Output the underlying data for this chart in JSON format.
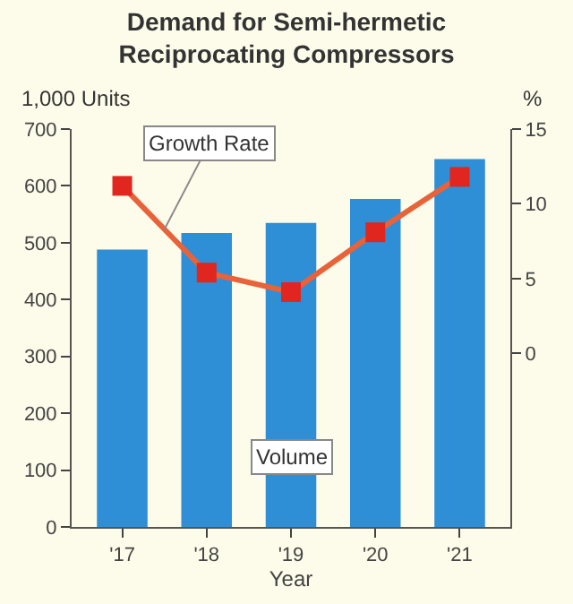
{
  "chart_data": {
    "type": "bar",
    "title": "Demand for Semi-hermetic\nReciprocating Compressors",
    "xlabel": "Year",
    "ylabel": "1,000 Units",
    "y2label": "%",
    "categories": [
      "'17",
      "'18",
      "'19",
      "'20",
      "'21"
    ],
    "series": [
      {
        "name": "Volume",
        "color": "#2e8fd6",
        "values": [
          488,
          517,
          535,
          577,
          647
        ]
      },
      {
        "name": "Growth Rate",
        "type": "line",
        "axis": "y2",
        "color": "#e8623a",
        "marker": "square",
        "values": [
          11.2,
          5.4,
          4.1,
          8.1,
          11.8
        ]
      }
    ],
    "ylim": [
      0,
      700
    ],
    "yticks": [
      0,
      100,
      200,
      300,
      400,
      500,
      600,
      700
    ],
    "y2lim": [
      -11.6,
      15
    ],
    "y2ticks": [
      0,
      5,
      10,
      15
    ],
    "grid": false,
    "legend": false
  }
}
